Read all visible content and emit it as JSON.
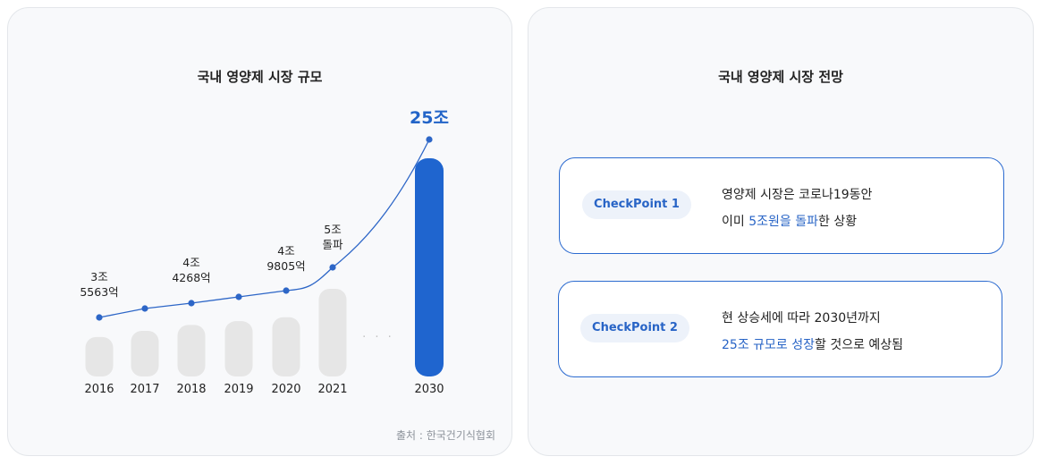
{
  "left_panel": {
    "title": "국내 영양제 시장 규모",
    "source": "출처 : 한국건기식협회"
  },
  "right_panel": {
    "title": "국내 영양제 시장 전망",
    "cards": [
      {
        "badge": "CheckPoint 1",
        "line1": "영양제 시장은 코로나19동안",
        "line2_pre": "이미 ",
        "line2_highlight": "5조원을 돌파",
        "line2_post": "한 상황"
      },
      {
        "badge": "CheckPoint 2",
        "line1": "현 상승세에 따라 2030년까지",
        "line2_pre": "",
        "line2_highlight": "25조 규모로 성장",
        "line2_post": "할 것으로 예상됨"
      }
    ]
  },
  "chart_data": {
    "type": "bar",
    "title": "국내 영양제 시장 규모",
    "categories": [
      "2016",
      "2017",
      "2018",
      "2019",
      "2020",
      "2021",
      "2030"
    ],
    "values": [
      3.5563,
      4.0,
      4.4268,
      4.7,
      4.9805,
      5.0,
      25.0
    ],
    "unit": "조",
    "line_values": [
      3.5563,
      4.0,
      4.4268,
      4.7,
      4.9805,
      5.0,
      25.0
    ],
    "data_labels": [
      [
        "3조",
        "5563억"
      ],
      [],
      [
        "4조",
        "4268억"
      ],
      [],
      [
        "4조",
        "9805억"
      ],
      [
        "5조",
        "돌파"
      ],
      [
        "25조"
      ]
    ],
    "gap_marker": "· · ·",
    "colors": {
      "bar": "#e6e6e6",
      "highlight_bar": "#1f65cf",
      "line": "#2d66c7",
      "highlight_text": "#2264c8"
    }
  }
}
